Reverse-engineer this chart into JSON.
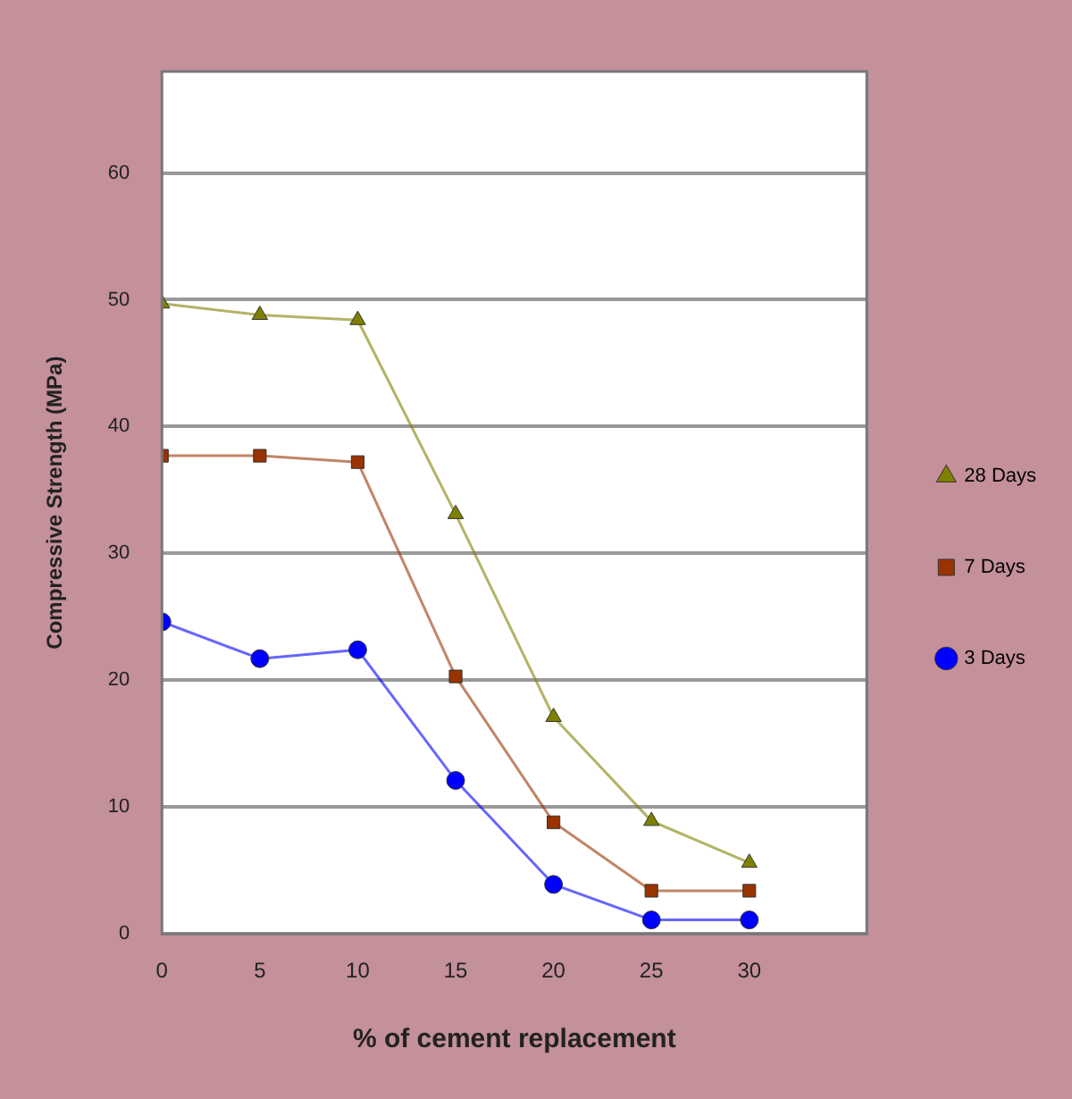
{
  "chart_data": {
    "type": "line",
    "xlabel": "% of cement replacement",
    "ylabel": "Compressive Strength (MPa)",
    "x": [
      0,
      5,
      10,
      15,
      20,
      25,
      30
    ],
    "xlim": [
      0,
      36
    ],
    "xticks": [
      0,
      5,
      10,
      15,
      20,
      25,
      30
    ],
    "ylim": [
      0,
      68
    ],
    "yticks": [
      0,
      10,
      20,
      30,
      40,
      50,
      60
    ],
    "grid": "y",
    "legend": "right",
    "series": [
      {
        "name": "28 Days",
        "color": "#808000",
        "marker": "triangle",
        "values": [
          49.7,
          48.8,
          48.4,
          33.1,
          17.1,
          8.9,
          5.6
        ]
      },
      {
        "name": "7 Days",
        "color": "#993300",
        "marker": "square",
        "values": [
          37.7,
          37.7,
          37.2,
          20.3,
          8.8,
          3.4,
          3.4
        ]
      },
      {
        "name": "3 Days",
        "color": "#0000ff",
        "marker": "circle",
        "values": [
          24.6,
          21.7,
          22.4,
          12.1,
          3.9,
          1.1,
          1.1
        ]
      }
    ]
  }
}
